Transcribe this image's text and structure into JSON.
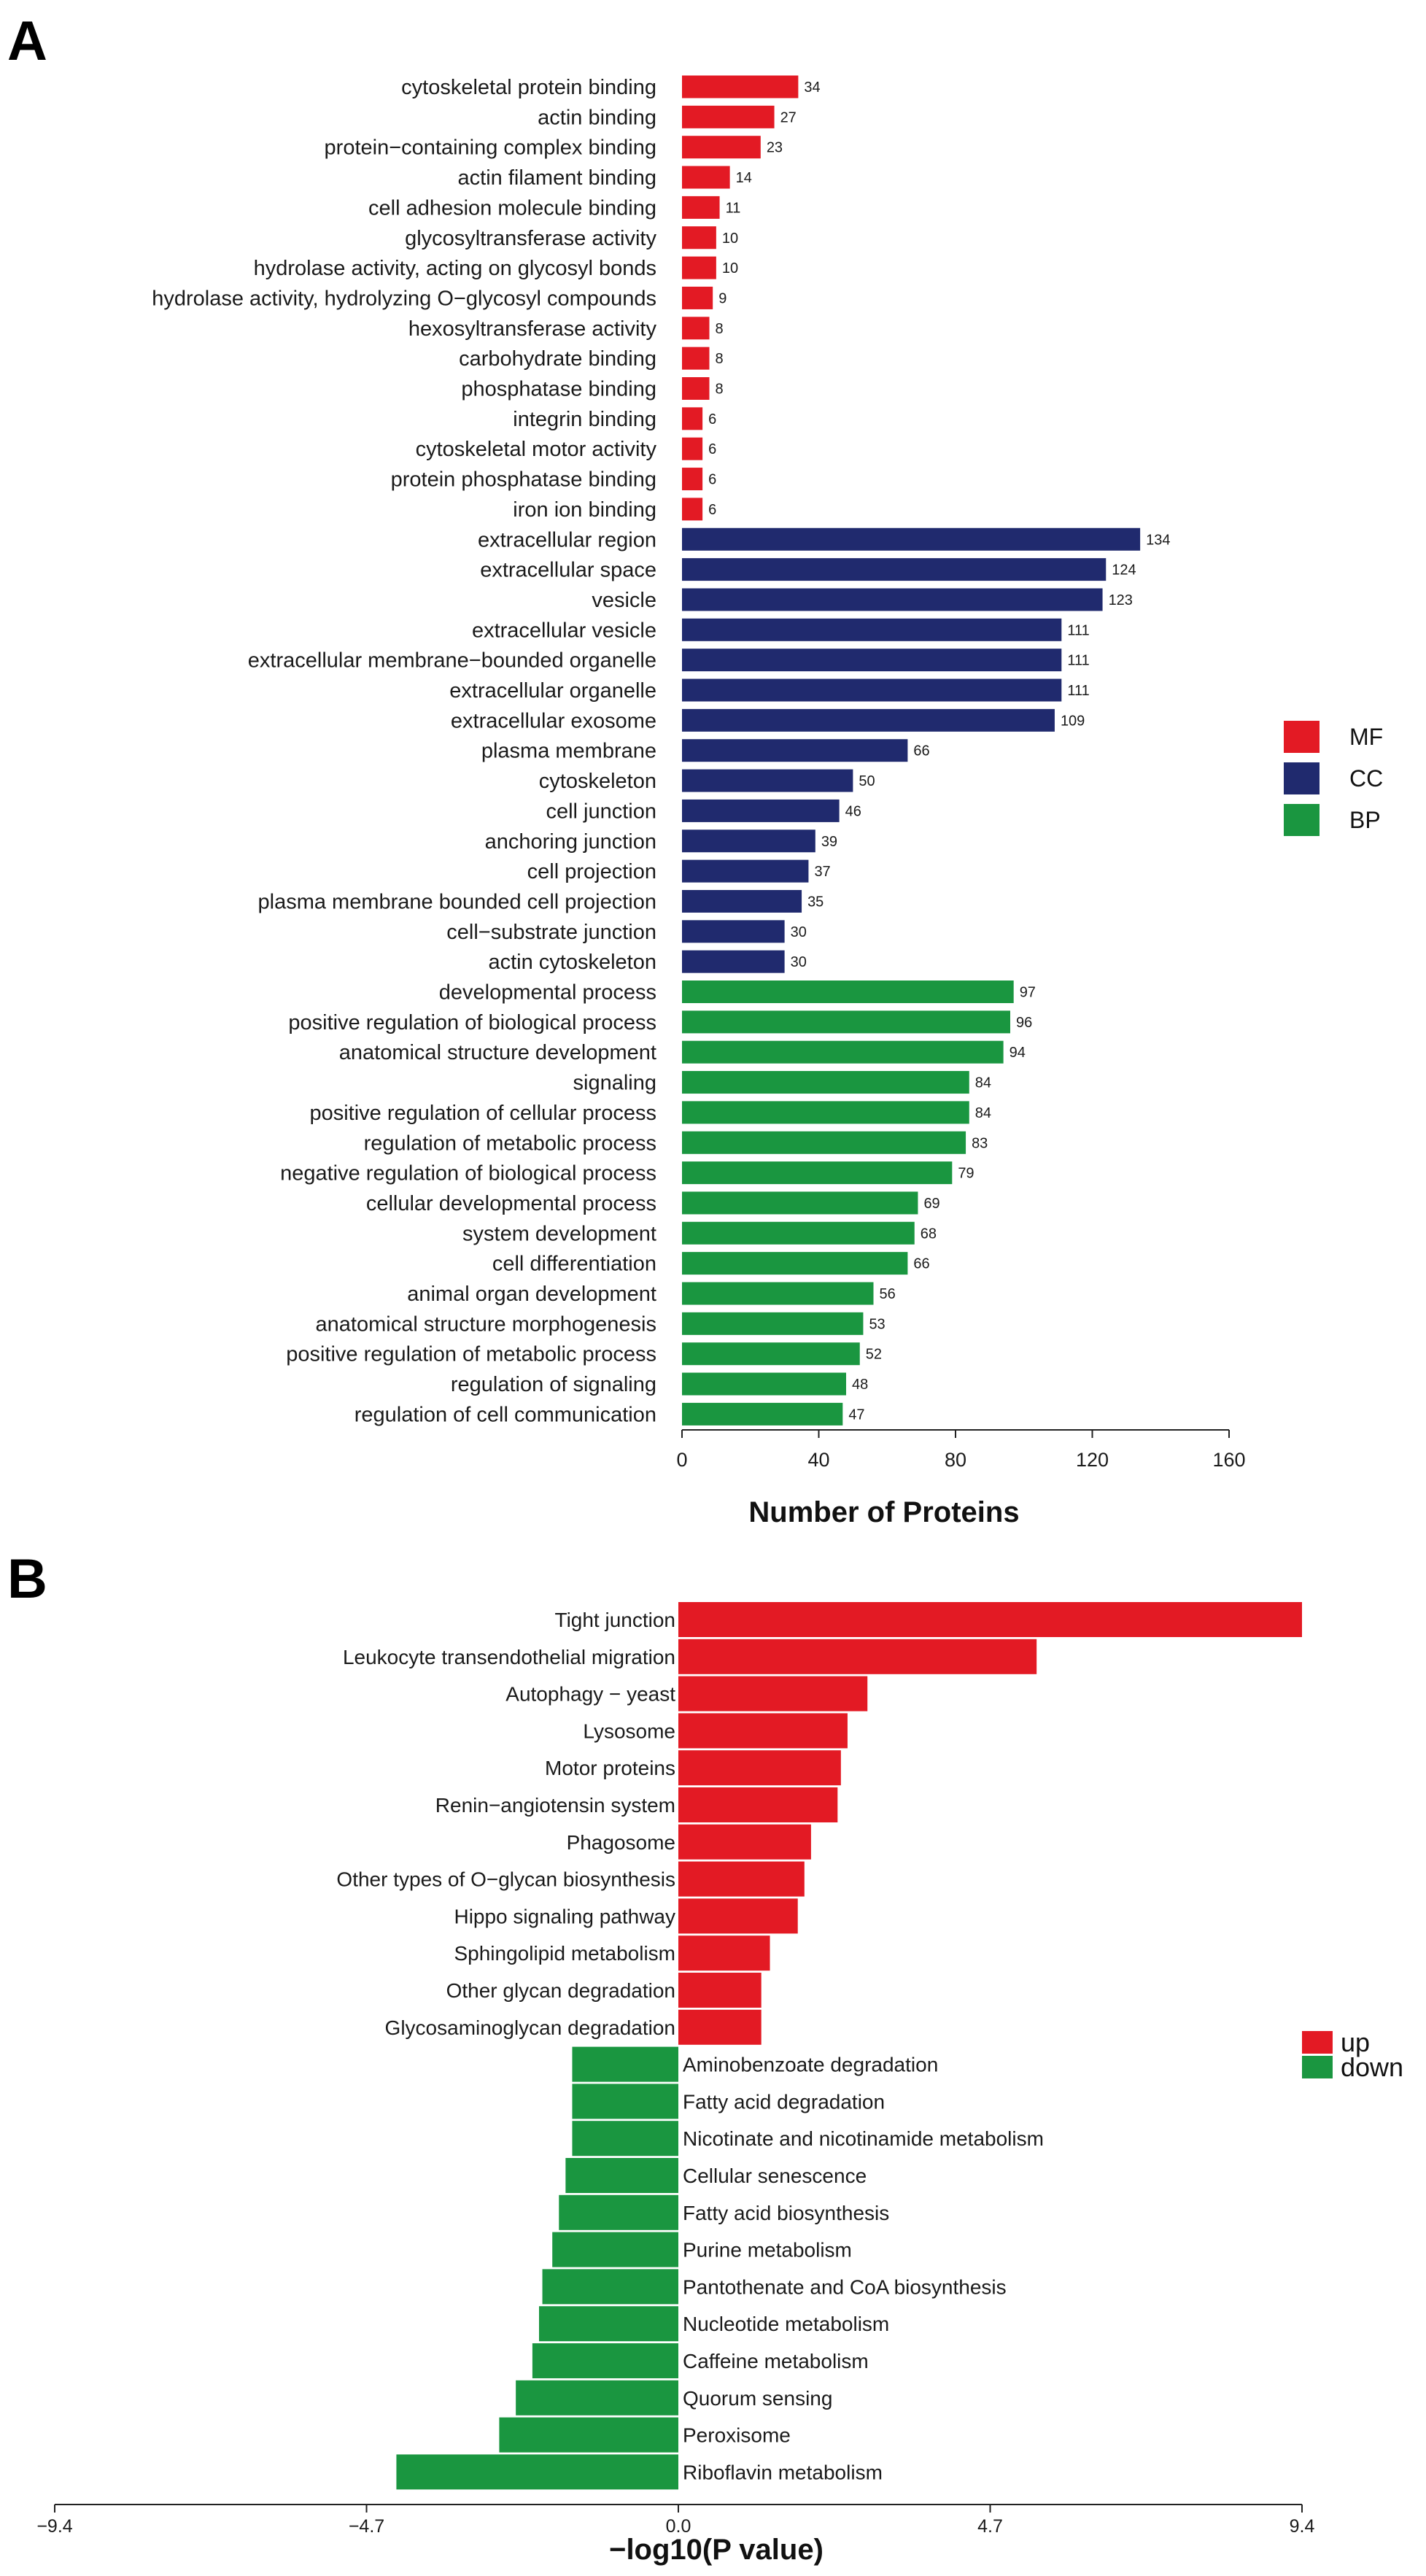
{
  "chart_data": [
    {
      "panel_label": "A",
      "type": "bar",
      "orientation": "horizontal",
      "xlabel": "Number of Proteins",
      "xlim": [
        0,
        160
      ],
      "xticks": [
        "0",
        "40",
        "80",
        "120",
        "160"
      ],
      "legend": {
        "placement": "right",
        "entries": [
          {
            "name": "MF",
            "color": "#e31a24"
          },
          {
            "name": "CC",
            "color": "#202a6e"
          },
          {
            "name": "BP",
            "color": "#1a9640"
          }
        ]
      },
      "series": [
        {
          "name": "MF",
          "color": "#e31a24",
          "categories": [
            "cytoskeletal protein binding",
            "actin binding",
            "protein−containing complex binding",
            "actin filament binding",
            "cell adhesion molecule binding",
            "glycosyltransferase activity",
            "hydrolase activity, acting on glycosyl bonds",
            "hydrolase activity, hydrolyzing O−glycosyl compounds",
            "hexosyltransferase activity",
            "carbohydrate binding",
            "phosphatase binding",
            "integrin binding",
            "cytoskeletal motor activity",
            "protein phosphatase binding",
            "iron ion binding"
          ],
          "values": [
            34,
            27,
            23,
            14,
            11,
            10,
            10,
            9,
            8,
            8,
            8,
            6,
            6,
            6,
            6
          ]
        },
        {
          "name": "CC",
          "color": "#202a6e",
          "categories": [
            "extracellular region",
            "extracellular space",
            "vesicle",
            "extracellular vesicle",
            "extracellular membrane−bounded organelle",
            "extracellular organelle",
            "extracellular exosome",
            "plasma membrane",
            "cytoskeleton",
            "cell junction",
            "anchoring junction",
            "cell projection",
            "plasma membrane bounded cell projection",
            "cell−substrate junction",
            "actin cytoskeleton"
          ],
          "values": [
            134,
            124,
            123,
            111,
            111,
            111,
            109,
            66,
            50,
            46,
            39,
            37,
            35,
            30,
            30
          ]
        },
        {
          "name": "BP",
          "color": "#1a9640",
          "categories": [
            "developmental process",
            "positive regulation of biological process",
            "anatomical structure development",
            "signaling",
            "positive regulation of cellular process",
            "regulation of metabolic process",
            "negative regulation of biological process",
            "cellular developmental process",
            "system development",
            "cell differentiation",
            "animal organ development",
            "anatomical structure morphogenesis",
            "positive regulation of metabolic process",
            "regulation of signaling",
            "regulation of cell communication"
          ],
          "values": [
            97,
            96,
            94,
            84,
            84,
            83,
            79,
            69,
            68,
            66,
            56,
            53,
            52,
            48,
            47
          ]
        }
      ]
    },
    {
      "panel_label": "B",
      "type": "bar",
      "orientation": "horizontal",
      "xlabel": "−log10(P value)",
      "xlim": [
        -9.4,
        9.4
      ],
      "xticks": [
        "−9.4",
        "−4.7",
        "0.0",
        "4.7",
        "9.4"
      ],
      "legend": {
        "placement": "right",
        "entries": [
          {
            "name": "up",
            "color": "#e31a24"
          },
          {
            "name": "down",
            "color": "#1a9640"
          }
        ]
      },
      "series": [
        {
          "name": "up",
          "color": "#e31a24",
          "categories": [
            "Tight junction",
            "Leukocyte transendothelial migration",
            "Autophagy − yeast",
            "Lysosome",
            "Motor proteins",
            "Renin−angiotensin system",
            "Phagosome",
            "Other types of O−glycan biosynthesis",
            "Hippo signaling pathway",
            "Sphingolipid metabolism",
            "Other glycan degradation",
            "Glycosaminoglycan degradation"
          ],
          "values": [
            9.4,
            5.4,
            2.85,
            2.55,
            2.45,
            2.4,
            2.0,
            1.9,
            1.8,
            1.38,
            1.25,
            1.25
          ]
        },
        {
          "name": "down",
          "color": "#1a9640",
          "categories": [
            "Aminobenzoate degradation",
            "Fatty acid degradation",
            "Nicotinate and nicotinamide metabolism",
            "Cellular senescence",
            "Fatty acid biosynthesis",
            "Purine metabolism",
            "Pantothenate and CoA biosynthesis",
            "Nucleotide metabolism",
            "Caffeine metabolism",
            "Quorum sensing",
            "Peroxisome",
            "Riboflavin metabolism"
          ],
          "values": [
            -1.6,
            -1.6,
            -1.6,
            -1.7,
            -1.8,
            -1.9,
            -2.05,
            -2.1,
            -2.2,
            -2.45,
            -2.7,
            -4.25
          ]
        }
      ]
    }
  ]
}
